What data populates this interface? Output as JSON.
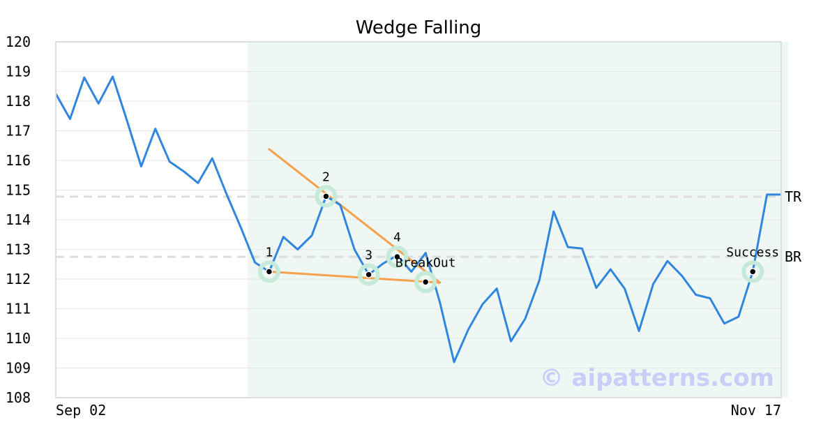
{
  "chart_data": {
    "type": "line",
    "title": "Wedge Falling",
    "xlabel": "",
    "ylabel": "",
    "ylim": [
      108,
      120
    ],
    "yticks": [
      108,
      109,
      110,
      111,
      112,
      113,
      114,
      115,
      116,
      117,
      118,
      119,
      120
    ],
    "x_tick_labels": [
      "Sep 02",
      "Nov 17"
    ],
    "grid": "horizontal",
    "series": [
      {
        "values": [
          118.25,
          117.4,
          118.8,
          117.92,
          118.83,
          117.35,
          115.8,
          117.07,
          115.96,
          115.63,
          115.24,
          116.07,
          114.87,
          113.75,
          112.56,
          112.25,
          113.42,
          113.0,
          113.47,
          114.79,
          114.5,
          113.0,
          112.15,
          112.52,
          112.8,
          112.25,
          112.88,
          111.22,
          109.2,
          110.3,
          111.15,
          111.68,
          109.9,
          110.66,
          111.96,
          114.28,
          113.08,
          113.03,
          111.7,
          112.33,
          111.67,
          110.25,
          111.83,
          112.61,
          112.12,
          111.47,
          111.35,
          110.5,
          110.73,
          112.25,
          114.85,
          114.85
        ]
      }
    ],
    "highlight_range": [
      13.5,
      51.5
    ],
    "levels": [
      {
        "label": "TR",
        "value": 114.78
      },
      {
        "label": "BR",
        "value": 112.75
      }
    ],
    "trendlines": [
      {
        "from": [
          15,
          116.38
        ],
        "to": [
          27,
          111.88
        ]
      },
      {
        "from": [
          15,
          112.25
        ],
        "to": [
          27,
          111.88
        ]
      }
    ],
    "markers": [
      {
        "label": "1",
        "x": 15,
        "y": 112.25
      },
      {
        "label": "2",
        "x": 19,
        "y": 114.79
      },
      {
        "label": "3",
        "x": 22,
        "y": 112.15
      },
      {
        "label": "4",
        "x": 24,
        "y": 112.75
      },
      {
        "label": "BreakOut",
        "x": 26,
        "y": 111.9
      },
      {
        "label": "Success",
        "x": 49,
        "y": 112.25
      }
    ],
    "watermark": "© aipatterns.com",
    "colors": {
      "line": "#2e86de",
      "trend": "#f5a04a",
      "highlight": "#eef7f3",
      "marker_halo": "#c5ead8",
      "level": "#dddddd",
      "grid": "#e6e6e6",
      "frame": "#dddddd"
    }
  }
}
